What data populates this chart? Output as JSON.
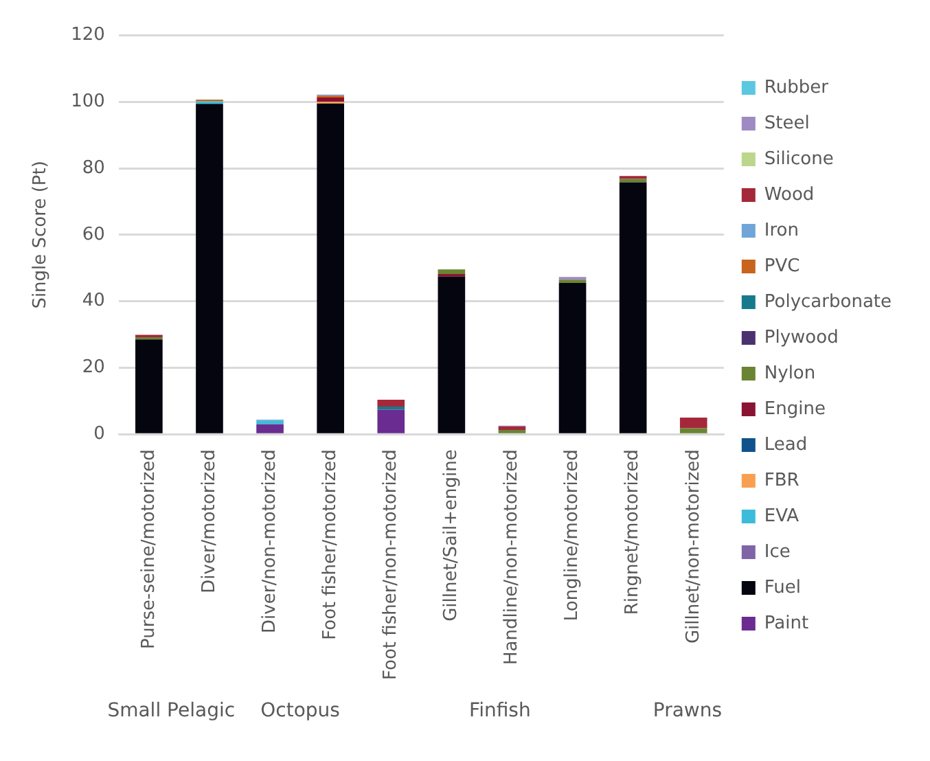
{
  "chart_data": {
    "type": "bar",
    "stacked": true,
    "ylabel": "Single Score (Pt)",
    "ylim": [
      0,
      120
    ],
    "yticks": [
      0,
      20,
      40,
      60,
      80,
      100,
      120
    ],
    "grid": "y",
    "legend": "right",
    "categories": [
      "Purse-seine/motorized",
      "Diver/motorized",
      "Diver/non-motorized",
      "Foot fisher/motorized",
      "Foot fisher/non-motorized",
      "Gillnet/Sail+engine",
      "Handline/non-motorized",
      "Longline/motorized",
      "Ringnet/motorized",
      "Gillnet/non-motorized"
    ],
    "annotations": [
      "Small Pelagic",
      "Octopus",
      "Finfish",
      "Prawns"
    ],
    "series": [
      {
        "name": "Paint",
        "color": "#6a2c90",
        "values": [
          null,
          null,
          3.0,
          null,
          7.4,
          null,
          null,
          null,
          null,
          null
        ]
      },
      {
        "name": "Fuel",
        "color": "#050510",
        "values": [
          28.5,
          99.4,
          null,
          99.5,
          null,
          47.4,
          null,
          45.5,
          75.8,
          null
        ]
      },
      {
        "name": "Ice",
        "color": "#8064a8",
        "values": [
          null,
          null,
          null,
          null,
          null,
          null,
          null,
          null,
          null,
          null
        ]
      },
      {
        "name": "EVA",
        "color": "#3cbcd8",
        "values": [
          null,
          0.8,
          1.0,
          null,
          null,
          null,
          null,
          null,
          null,
          null
        ]
      },
      {
        "name": "FBR",
        "color": "#f8a050",
        "values": [
          null,
          null,
          null,
          0.6,
          null,
          null,
          null,
          null,
          null,
          null
        ]
      },
      {
        "name": "Lead",
        "color": "#10528a",
        "values": [
          null,
          null,
          null,
          null,
          null,
          null,
          null,
          null,
          null,
          null
        ]
      },
      {
        "name": "Engine",
        "color": "#8a1232",
        "values": [
          null,
          null,
          null,
          1.2,
          null,
          0.8,
          null,
          null,
          null,
          null
        ]
      },
      {
        "name": "Nylon",
        "color": "#6a8433",
        "values": [
          0.7,
          null,
          null,
          null,
          null,
          1.4,
          1.3,
          1.0,
          1.0,
          1.8
        ]
      },
      {
        "name": "Plywood",
        "color": "#4b3170",
        "values": [
          null,
          null,
          null,
          null,
          null,
          null,
          null,
          null,
          null,
          null
        ]
      },
      {
        "name": "Polycarbonate",
        "color": "#167a8c",
        "values": [
          null,
          null,
          null,
          null,
          0.9,
          null,
          null,
          null,
          null,
          null
        ]
      },
      {
        "name": "PVC",
        "color": "#c8641e",
        "values": [
          null,
          0.5,
          null,
          0.6,
          null,
          null,
          null,
          null,
          null,
          null
        ]
      },
      {
        "name": "Iron",
        "color": "#6fa5d8",
        "values": [
          null,
          null,
          0.4,
          0.3,
          null,
          null,
          null,
          null,
          null,
          null
        ]
      },
      {
        "name": "Wood",
        "color": "#a5283a",
        "values": [
          0.7,
          null,
          null,
          null,
          2.1,
          null,
          1.0,
          null,
          0.9,
          3.2
        ]
      },
      {
        "name": "Silicone",
        "color": "#bcd68c",
        "values": [
          null,
          null,
          null,
          null,
          null,
          null,
          null,
          null,
          null,
          null
        ]
      },
      {
        "name": "Steel",
        "color": "#9e8bc3",
        "values": [
          null,
          null,
          null,
          null,
          null,
          null,
          0.3,
          0.8,
          null,
          null
        ]
      },
      {
        "name": "Rubber",
        "color": "#5bc8e0",
        "values": [
          null,
          null,
          null,
          null,
          null,
          null,
          null,
          null,
          null,
          null
        ]
      }
    ]
  }
}
